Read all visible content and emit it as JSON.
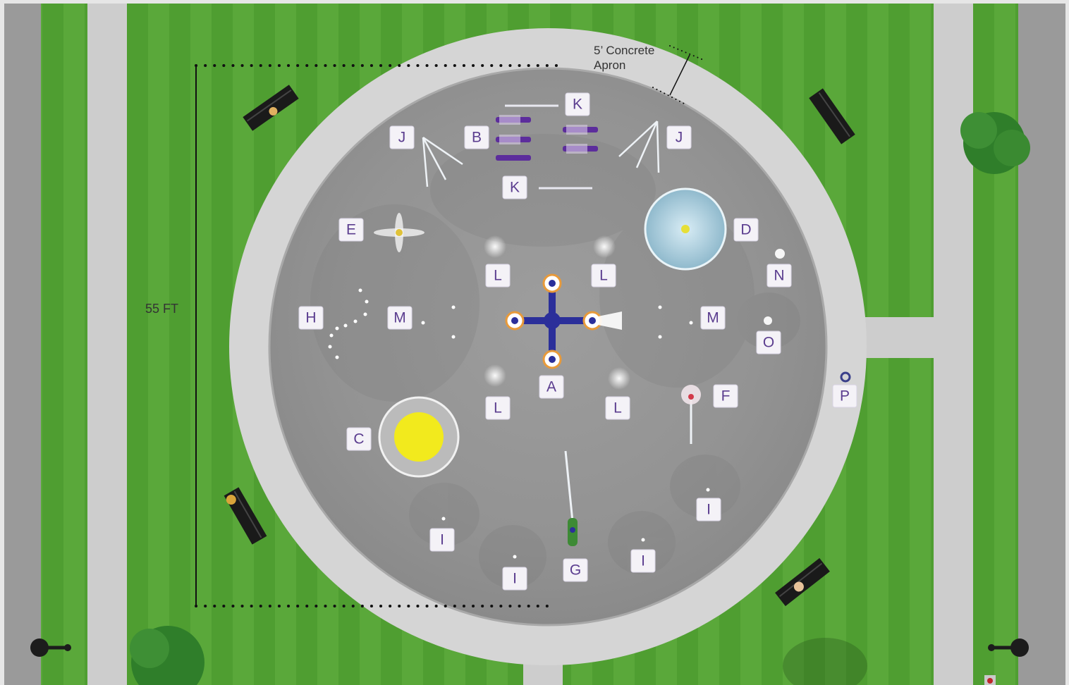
{
  "plan": {
    "dimension_label": "55 FT",
    "apron_line1": "5’  Concrete",
    "apron_line2": "Apron"
  },
  "labels": {
    "A": "A",
    "B": "B",
    "C": "C",
    "D": "D",
    "E": "E",
    "F": "F",
    "G": "G",
    "H": "H",
    "I": "I",
    "J": "J",
    "K": "K",
    "L": "L",
    "M": "M",
    "N": "N",
    "O": "O",
    "P": "P"
  },
  "colors": {
    "grass": "#4f9e31",
    "path": "#cfcfcf",
    "apron": "#d3d3d3",
    "pad": "#9c9c9c",
    "label_text": "#5b3d8f",
    "feature_a": "#2b2f9a",
    "feature_c": "#f2ea1d"
  }
}
